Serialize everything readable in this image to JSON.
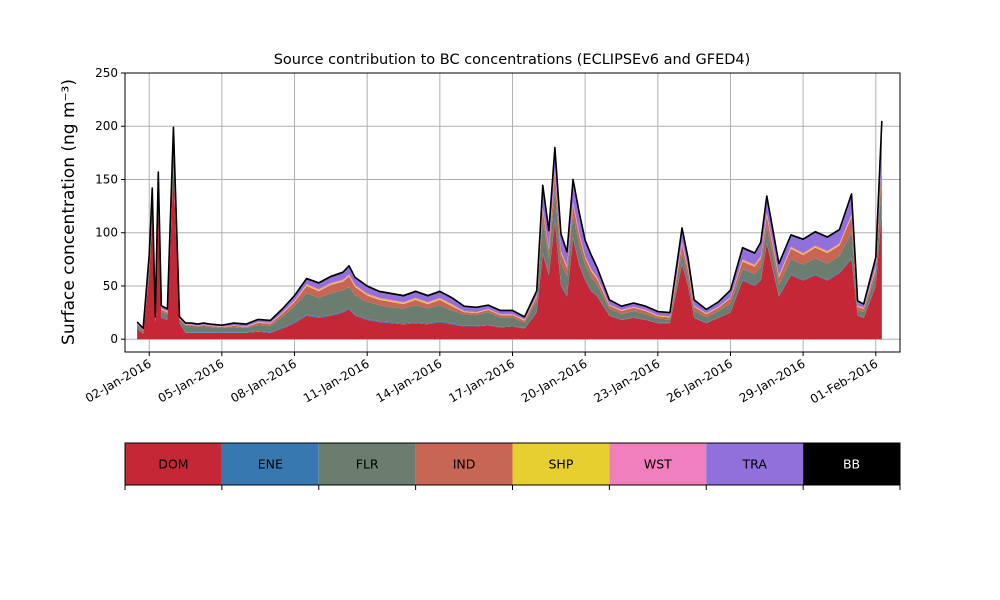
{
  "chart_data": {
    "type": "area",
    "title": "Source contribution to BC concentrations (ECLIPSEv6 and GFED4)",
    "ylabel": "Surface concentration (ng m⁻³)",
    "xlabel": "",
    "ylim": [
      -12,
      250
    ],
    "xlim": [
      "2016-01-01",
      "2016-02-02"
    ],
    "yticks": [
      0,
      50,
      100,
      150,
      200,
      250
    ],
    "xtick_labels": [
      {
        "date": "2016-01-02",
        "label": "02-Jan-2016"
      },
      {
        "date": "2016-01-05",
        "label": "05-Jan-2016"
      },
      {
        "date": "2016-01-08",
        "label": "08-Jan-2016"
      },
      {
        "date": "2016-01-11",
        "label": "11-Jan-2016"
      },
      {
        "date": "2016-01-14",
        "label": "14-Jan-2016"
      },
      {
        "date": "2016-01-17",
        "label": "17-Jan-2016"
      },
      {
        "date": "2016-01-20",
        "label": "20-Jan-2016"
      },
      {
        "date": "2016-01-23",
        "label": "23-Jan-2016"
      },
      {
        "date": "2016-01-26",
        "label": "26-Jan-2016"
      },
      {
        "date": "2016-01-29",
        "label": "29-Jan-2016"
      },
      {
        "date": "2016-02-01",
        "label": "01-Feb-2016"
      }
    ],
    "grid": true,
    "legend_position": "below",
    "x": [
      "2016-01-01 12:00",
      "2016-01-01 18:00",
      "2016-01-02 00:00",
      "2016-01-02 03:00",
      "2016-01-02 06:00",
      "2016-01-02 09:00",
      "2016-01-02 12:00",
      "2016-01-02 18:00",
      "2016-01-03 00:00",
      "2016-01-03 06:00",
      "2016-01-03 12:00",
      "2016-01-03 18:00",
      "2016-01-04 00:00",
      "2016-01-04 06:00",
      "2016-01-04 12:00",
      "2016-01-05 00:00",
      "2016-01-05 12:00",
      "2016-01-06 00:00",
      "2016-01-06 12:00",
      "2016-01-07 00:00",
      "2016-01-07 12:00",
      "2016-01-08 00:00",
      "2016-01-08 12:00",
      "2016-01-09 00:00",
      "2016-01-09 12:00",
      "2016-01-10 00:00",
      "2016-01-10 06:00",
      "2016-01-10 12:00",
      "2016-01-11 00:00",
      "2016-01-11 12:00",
      "2016-01-12 00:00",
      "2016-01-12 12:00",
      "2016-01-13 00:00",
      "2016-01-13 12:00",
      "2016-01-14 00:00",
      "2016-01-14 12:00",
      "2016-01-15 00:00",
      "2016-01-15 12:00",
      "2016-01-16 00:00",
      "2016-01-16 12:00",
      "2016-01-17 00:00",
      "2016-01-17 12:00",
      "2016-01-18 00:00",
      "2016-01-18 06:00",
      "2016-01-18 12:00",
      "2016-01-18 18:00",
      "2016-01-19 00:00",
      "2016-01-19 06:00",
      "2016-01-19 12:00",
      "2016-01-19 18:00",
      "2016-01-20 00:00",
      "2016-01-20 06:00",
      "2016-01-20 12:00",
      "2016-01-21 00:00",
      "2016-01-21 12:00",
      "2016-01-22 00:00",
      "2016-01-22 12:00",
      "2016-01-23 00:00",
      "2016-01-23 12:00",
      "2016-01-24 00:00",
      "2016-01-24 06:00",
      "2016-01-24 12:00",
      "2016-01-25 00:00",
      "2016-01-25 12:00",
      "2016-01-26 00:00",
      "2016-01-26 12:00",
      "2016-01-27 00:00",
      "2016-01-27 06:00",
      "2016-01-27 12:00",
      "2016-01-28 00:00",
      "2016-01-28 12:00",
      "2016-01-29 00:00",
      "2016-01-29 12:00",
      "2016-01-30 00:00",
      "2016-01-30 12:00",
      "2016-01-31 00:00",
      "2016-01-31 06:00",
      "2016-01-31 12:00",
      "2016-02-01 00:00",
      "2016-02-01 06:00"
    ],
    "series": [
      {
        "name": "DOM",
        "values": [
          10,
          5,
          60,
          110,
          15,
          120,
          20,
          18,
          160,
          15,
          6,
          6,
          6,
          6,
          6,
          6,
          6,
          6,
          7,
          6,
          10,
          15,
          22,
          20,
          22,
          25,
          28,
          22,
          18,
          16,
          15,
          14,
          15,
          14,
          16,
          14,
          12,
          12,
          13,
          11,
          12,
          10,
          25,
          80,
          60,
          110,
          50,
          40,
          95,
          70,
          55,
          45,
          40,
          22,
          18,
          20,
          18,
          15,
          15,
          70,
          50,
          20,
          15,
          20,
          25,
          55,
          50,
          55,
          90,
          40,
          60,
          55,
          60,
          55,
          62,
          75,
          22,
          20,
          50,
          120
        ]
      },
      {
        "name": "ENE",
        "values": [
          0.5,
          0.5,
          1,
          1,
          0.5,
          1,
          1,
          1,
          1,
          0.5,
          0.5,
          0.5,
          0.5,
          0.5,
          0.5,
          0.5,
          0.5,
          0.5,
          0.5,
          0.5,
          1,
          1,
          1,
          1,
          1,
          1,
          1,
          1,
          1,
          1,
          1,
          1,
          1,
          1,
          1,
          1,
          0.5,
          0.5,
          0.5,
          0.5,
          0.5,
          0.5,
          1,
          1,
          1,
          1,
          1,
          1,
          1,
          1,
          1,
          1,
          1,
          0.5,
          0.5,
          0.5,
          0.5,
          0.5,
          0.5,
          1,
          1,
          0.5,
          0.5,
          0.5,
          0.5,
          1,
          1,
          1,
          1,
          1,
          1,
          1,
          1,
          1,
          1,
          1,
          0.5,
          0.5,
          1,
          1
        ]
      },
      {
        "name": "FLR",
        "values": [
          3,
          2,
          10,
          15,
          3,
          20,
          5,
          4,
          22,
          3,
          6,
          6,
          5,
          6,
          5,
          4,
          5,
          4,
          6,
          6,
          10,
          15,
          20,
          18,
          20,
          20,
          20,
          18,
          16,
          15,
          14,
          14,
          16,
          14,
          15,
          12,
          11,
          10,
          12,
          9,
          8,
          5,
          10,
          30,
          15,
          30,
          20,
          18,
          20,
          18,
          14,
          12,
          10,
          6,
          5,
          6,
          5,
          4,
          3,
          10,
          8,
          6,
          5,
          6,
          8,
          10,
          10,
          12,
          15,
          10,
          14,
          14,
          15,
          15,
          15,
          25,
          5,
          5,
          10,
          30
        ]
      },
      {
        "name": "IND",
        "values": [
          1,
          1,
          4,
          8,
          1,
          8,
          2,
          2,
          8,
          1,
          1,
          1,
          1,
          1,
          1,
          1,
          1,
          1,
          2,
          2,
          3,
          4,
          7,
          6,
          8,
          8,
          10,
          8,
          6,
          5,
          5,
          4,
          5,
          4,
          5,
          4,
          2,
          2,
          2,
          2,
          2,
          2,
          4,
          10,
          8,
          15,
          10,
          8,
          10,
          9,
          6,
          6,
          5,
          3,
          3,
          3,
          3,
          2,
          2,
          8,
          6,
          4,
          3,
          3,
          5,
          7,
          7,
          8,
          10,
          7,
          10,
          9,
          10,
          10,
          10,
          14,
          3,
          3,
          5,
          15
        ]
      },
      {
        "name": "SHP",
        "values": [
          0.2,
          0.2,
          0.5,
          1,
          0.2,
          1,
          0.5,
          0.5,
          1,
          0.2,
          0.2,
          0.2,
          0.2,
          0.2,
          0.2,
          0.2,
          0.2,
          0.2,
          0.3,
          0.3,
          0.5,
          0.5,
          1,
          1,
          1,
          1,
          1,
          1,
          1,
          1,
          1,
          1,
          1,
          1,
          1,
          1,
          0.5,
          0.5,
          0.5,
          0.5,
          0.5,
          0.5,
          0.5,
          1,
          1,
          1,
          1,
          1,
          1,
          1,
          1,
          1,
          1,
          0.5,
          0.5,
          0.5,
          0.5,
          0.5,
          0.5,
          1,
          1,
          0.5,
          0.5,
          0.5,
          0.5,
          1,
          1,
          1,
          1,
          1,
          1,
          1,
          1,
          1,
          1,
          1,
          0.5,
          0.5,
          1,
          1
        ]
      },
      {
        "name": "WST",
        "values": [
          0.3,
          0.3,
          0.5,
          1,
          0.3,
          1,
          0.5,
          0.5,
          1,
          0.3,
          0.3,
          0.3,
          0.3,
          0.3,
          0.3,
          0.3,
          0.3,
          0.3,
          0.5,
          0.5,
          0.5,
          1,
          1,
          1,
          1,
          1,
          1,
          1,
          1,
          1,
          1,
          1,
          1,
          1,
          1,
          1,
          0.5,
          0.5,
          0.5,
          0.5,
          0.5,
          0.5,
          0.5,
          1.5,
          1,
          2,
          1,
          1,
          2,
          1.5,
          1,
          1,
          1,
          0.5,
          0.5,
          0.5,
          0.5,
          0.5,
          0.5,
          1.5,
          1,
          0.5,
          0.5,
          0.5,
          0.5,
          1,
          1,
          1,
          1.5,
          1,
          1,
          1,
          1,
          1,
          1,
          1.5,
          0.5,
          0.5,
          1,
          2
        ]
      },
      {
        "name": "TRA",
        "values": [
          1,
          1,
          3,
          5,
          1,
          5,
          2,
          2,
          5,
          1,
          1,
          1,
          1,
          1,
          1,
          1,
          2,
          2,
          2,
          2,
          3,
          4,
          4,
          5,
          5,
          6,
          7,
          6,
          6,
          5,
          5,
          5,
          5,
          5,
          5,
          5,
          4,
          4,
          3,
          3,
          3,
          2,
          4,
          20,
          15,
          20,
          15,
          12,
          20,
          18,
          14,
          12,
          8,
          4,
          3,
          3,
          3,
          3,
          3,
          12,
          8,
          5,
          3,
          4,
          6,
          10,
          10,
          12,
          15,
          10,
          10,
          12,
          12,
          12,
          12,
          18,
          4,
          3,
          8,
          35
        ]
      },
      {
        "name": "BB",
        "values": [
          0.2,
          0.2,
          0.5,
          1,
          0.2,
          1,
          0.5,
          0.5,
          1,
          0.2,
          0.2,
          0.2,
          0.2,
          0.2,
          0.2,
          0.2,
          0.2,
          0.2,
          0.3,
          0.3,
          0.5,
          0.5,
          1,
          1,
          1,
          1,
          1,
          1,
          1,
          1,
          1,
          1,
          1,
          1,
          1,
          1,
          0.5,
          0.5,
          0.5,
          0.5,
          0.5,
          0.5,
          0.5,
          1,
          1,
          1,
          1,
          1,
          1,
          1,
          1,
          1,
          1,
          0.5,
          0.5,
          0.5,
          0.5,
          0.5,
          0.5,
          1,
          1,
          0.5,
          0.5,
          0.5,
          0.5,
          1,
          1,
          1,
          1,
          1,
          1,
          1,
          1,
          1,
          1,
          1,
          0.5,
          0.5,
          1,
          1
        ]
      }
    ]
  },
  "legend": {
    "items": [
      {
        "label": "DOM",
        "color": "#c42837",
        "text_color": "#000000"
      },
      {
        "label": "ENE",
        "color": "#3778b0",
        "text_color": "#000000"
      },
      {
        "label": "FLR",
        "color": "#6b7d6f",
        "text_color": "#000000"
      },
      {
        "label": "IND",
        "color": "#c86656",
        "text_color": "#000000"
      },
      {
        "label": "SHP",
        "color": "#e6cf2e",
        "text_color": "#000000"
      },
      {
        "label": "WST",
        "color": "#f07fbd",
        "text_color": "#000000"
      },
      {
        "label": "TRA",
        "color": "#9270dc",
        "text_color": "#000000"
      },
      {
        "label": "BB",
        "color": "#000000",
        "text_color": "#ffffff"
      }
    ]
  },
  "colors": {
    "grid": "#b0b0b0",
    "total_line": "#000000"
  }
}
